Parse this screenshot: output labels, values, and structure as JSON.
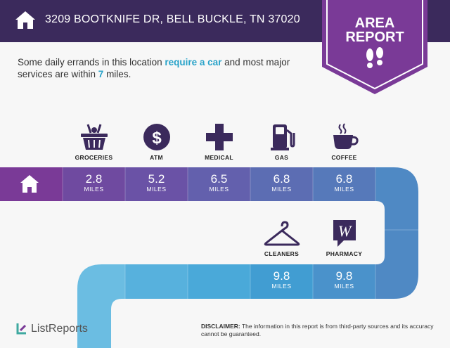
{
  "header": {
    "address": "3209 BOOTKNIFE DR, BELL BUCKLE, TN 37020"
  },
  "badge": {
    "line1": "AREA",
    "line2": "REPORT"
  },
  "intro": {
    "part1": "Some daily errands in this location ",
    "highlight1": "require a car",
    "part2": " and most major services are within ",
    "highlight2": "7",
    "part3": " miles."
  },
  "errands_row1": [
    {
      "label": "GROCERIES",
      "icon": "basket-icon",
      "distance": "2.8",
      "unit": "MILES"
    },
    {
      "label": "ATM",
      "icon": "dollar-icon",
      "distance": "5.2",
      "unit": "MILES"
    },
    {
      "label": "MEDICAL",
      "icon": "medical-cross-icon",
      "distance": "6.5",
      "unit": "MILES"
    },
    {
      "label": "GAS",
      "icon": "gas-pump-icon",
      "distance": "6.8",
      "unit": "MILES"
    },
    {
      "label": "COFFEE",
      "icon": "coffee-cup-icon",
      "distance": "6.8",
      "unit": "MILES"
    }
  ],
  "errands_row2": [
    {
      "label": "CLEANERS",
      "icon": "hanger-icon",
      "distance": "9.8",
      "unit": "MILES"
    },
    {
      "label": "PHARMACY",
      "icon": "walgreens-icon",
      "distance": "9.8",
      "unit": "MILES"
    }
  ],
  "footer": {
    "brand": "ListReports",
    "disclaimer_label": "DISCLAIMER:",
    "disclaimer_text": " The information in this report is from third-party sources and its accuracy cannot be guaranteed."
  },
  "colors": {
    "header": "#3b2a5c",
    "badge": "#7a3a97",
    "accent": "#29a3c9"
  }
}
